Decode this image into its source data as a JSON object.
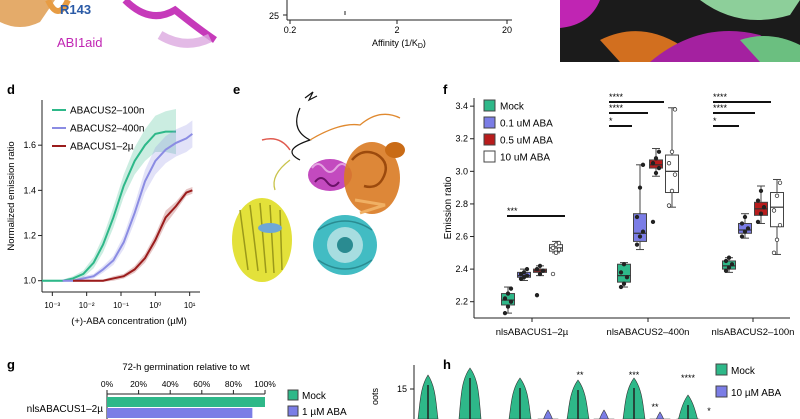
{
  "panels": {
    "d": "d",
    "e": "e",
    "f": "f",
    "g": "g",
    "h": "h"
  },
  "top_fragment": {
    "residue_label": "R143",
    "abi_label": "ABI1aid",
    "axis_tick_25": "25",
    "x_ticks": [
      "0.2",
      "2",
      "20"
    ],
    "x_label": "Affinity (1/K",
    "x_label_sub": "D",
    "x_label_close": ")"
  },
  "chart_data": [
    {
      "type": "line",
      "panel": "d",
      "xlabel": "(+)-ABA concentration (µM)",
      "ylabel": "Normalized emission ratio",
      "xscale": "log",
      "xlim": [
        0.0005,
        20
      ],
      "ylim": [
        0.95,
        1.8
      ],
      "x_tick_labels": [
        "10⁻³",
        "10⁻²",
        "10⁻¹",
        "10⁰",
        "10¹"
      ],
      "y_ticks": [
        1.0,
        1.2,
        1.4,
        1.6
      ],
      "legend": "top-left",
      "series": [
        {
          "name": "ABACUS2–100n",
          "color": "#2eb889",
          "x": [
            0.0005,
            0.001,
            0.002,
            0.004,
            0.008,
            0.016,
            0.03,
            0.06,
            0.12,
            0.25,
            0.5,
            1,
            2,
            4
          ],
          "y": [
            1.0,
            1.0,
            1.0,
            1.01,
            1.03,
            1.08,
            1.16,
            1.28,
            1.42,
            1.53,
            1.6,
            1.65,
            1.66,
            1.66
          ],
          "band": [
            0.005,
            0.005,
            0.005,
            0.01,
            0.015,
            0.025,
            0.035,
            0.045,
            0.05,
            0.06,
            0.07,
            0.08,
            0.09,
            0.1
          ]
        },
        {
          "name": "ABACUS2–400n",
          "color": "#8b8ce3",
          "x": [
            0.002,
            0.004,
            0.008,
            0.016,
            0.03,
            0.06,
            0.12,
            0.25,
            0.5,
            1,
            2,
            4,
            8,
            12
          ],
          "y": [
            1.0,
            1.0,
            1.01,
            1.02,
            1.05,
            1.09,
            1.17,
            1.3,
            1.44,
            1.53,
            1.58,
            1.61,
            1.63,
            1.65
          ],
          "band": [
            0.005,
            0.005,
            0.01,
            0.01,
            0.015,
            0.02,
            0.03,
            0.04,
            0.05,
            0.06,
            0.06,
            0.06,
            0.06,
            0.06
          ]
        },
        {
          "name": "ABACUS1–2µ",
          "color": "#9b1c1c",
          "x": [
            0.004,
            0.008,
            0.016,
            0.03,
            0.06,
            0.12,
            0.25,
            0.5,
            1,
            2,
            4,
            8,
            12
          ],
          "y": [
            1.0,
            1.0,
            1.0,
            1.0,
            1.01,
            1.02,
            1.05,
            1.1,
            1.18,
            1.28,
            1.33,
            1.39,
            1.4
          ],
          "band": [
            0.005,
            0.005,
            0.005,
            0.005,
            0.01,
            0.01,
            0.015,
            0.02,
            0.025,
            0.03,
            0.02,
            0.015,
            0.015
          ]
        }
      ]
    },
    {
      "type": "box",
      "panel": "f",
      "ylabel": "Emission ratio",
      "ylim": [
        2.1,
        3.45
      ],
      "y_ticks": [
        2.2,
        2.4,
        2.6,
        2.8,
        3.0,
        3.2,
        3.4
      ],
      "legend": "top-left",
      "series_names": [
        "Mock",
        "0.1 uM ABA",
        "0.5 uM ABA",
        "10 uM ABA"
      ],
      "series_colors": [
        "#2eb889",
        "#7b7de6",
        "#b81c1c",
        "#ffffff"
      ],
      "groups": [
        {
          "label": "nlsABACUS1–2µ",
          "boxes": [
            {
              "min": 2.13,
              "q1": 2.18,
              "median": 2.21,
              "q3": 2.25,
              "max": 2.29,
              "pts": [
                2.13,
                2.17,
                2.2,
                2.22,
                2.25,
                2.28
              ]
            },
            {
              "min": 2.33,
              "q1": 2.35,
              "median": 2.36,
              "q3": 2.38,
              "max": 2.4,
              "pts": [
                2.34,
                2.35,
                2.36,
                2.37,
                2.38,
                2.4
              ]
            },
            {
              "min": 2.36,
              "q1": 2.38,
              "median": 2.39,
              "q3": 2.4,
              "max": 2.42,
              "pts": [
                2.24,
                2.37,
                2.39,
                2.4,
                2.42
              ]
            },
            {
              "min": 2.5,
              "q1": 2.51,
              "median": 2.53,
              "q3": 2.55,
              "max": 2.57,
              "pts": [
                2.37,
                2.5,
                2.52,
                2.53,
                2.55,
                2.56
              ]
            }
          ]
        },
        {
          "label": "nlsABACUS2–400n",
          "boxes": [
            {
              "min": 2.29,
              "q1": 2.32,
              "median": 2.36,
              "q3": 2.43,
              "max": 2.44,
              "pts": [
                2.29,
                2.31,
                2.35,
                2.38,
                2.43
              ]
            },
            {
              "min": 2.52,
              "q1": 2.57,
              "median": 2.62,
              "q3": 2.74,
              "max": 3.04,
              "pts": [
                2.55,
                2.6,
                2.63,
                2.72,
                2.9,
                3.04
              ]
            },
            {
              "min": 2.97,
              "q1": 3.02,
              "median": 3.04,
              "q3": 3.07,
              "max": 3.14,
              "pts": [
                2.69,
                2.99,
                3.02,
                3.05,
                3.08,
                3.12
              ]
            },
            {
              "min": 2.78,
              "q1": 2.87,
              "median": 3.0,
              "q3": 3.1,
              "max": 3.39,
              "pts": [
                2.79,
                2.88,
                2.98,
                3.05,
                3.12,
                3.38
              ]
            }
          ]
        },
        {
          "label": "nlsABACUS2–100n",
          "boxes": [
            {
              "min": 2.38,
              "q1": 2.4,
              "median": 2.42,
              "q3": 2.45,
              "max": 2.47,
              "pts": [
                2.39,
                2.41,
                2.43,
                2.45,
                2.47
              ]
            },
            {
              "min": 2.59,
              "q1": 2.62,
              "median": 2.64,
              "q3": 2.68,
              "max": 2.74,
              "pts": [
                2.6,
                2.63,
                2.65,
                2.68,
                2.72
              ]
            },
            {
              "min": 2.68,
              "q1": 2.73,
              "median": 2.77,
              "q3": 2.81,
              "max": 2.91,
              "pts": [
                2.69,
                2.74,
                2.78,
                2.82,
                2.88
              ]
            },
            {
              "min": 2.49,
              "q1": 2.66,
              "median": 2.78,
              "q3": 2.87,
              "max": 2.95,
              "pts": [
                2.5,
                2.58,
                2.67,
                2.76,
                2.85,
                2.93
              ]
            }
          ]
        }
      ],
      "significance": [
        {
          "group": 0,
          "text": "***"
        },
        {
          "group": 1,
          "text": "****"
        },
        {
          "group": 1,
          "text": "****"
        },
        {
          "group": 1,
          "text": "*"
        },
        {
          "group": 2,
          "text": "****"
        },
        {
          "group": 2,
          "text": "****"
        },
        {
          "group": 2,
          "text": "*"
        }
      ]
    },
    {
      "type": "bar",
      "panel": "g",
      "title": "72-h germination relative to wt",
      "orientation": "horizontal",
      "x_tick_labels": [
        "0%",
        "20%",
        "40%",
        "60%",
        "80%",
        "100%"
      ],
      "xlim": [
        0,
        100
      ],
      "categories": [
        "nlsABACUS1–2µ"
      ],
      "series": [
        {
          "name": "Mock",
          "color": "#2eb889",
          "values": [
            100
          ]
        },
        {
          "name": "1 µM ABA",
          "color": "#7b7de6",
          "values": [
            92
          ]
        }
      ]
    },
    {
      "type": "violin",
      "panel": "h",
      "y_ticks": [
        15
      ],
      "ylabel_fragment": "oots",
      "legend": [
        "Mock",
        "10 µM ABA"
      ],
      "legend_colors": [
        "#2eb889",
        "#7b7de6"
      ],
      "annotations": [
        "**",
        "***",
        "**",
        "****",
        "*"
      ]
    }
  ]
}
